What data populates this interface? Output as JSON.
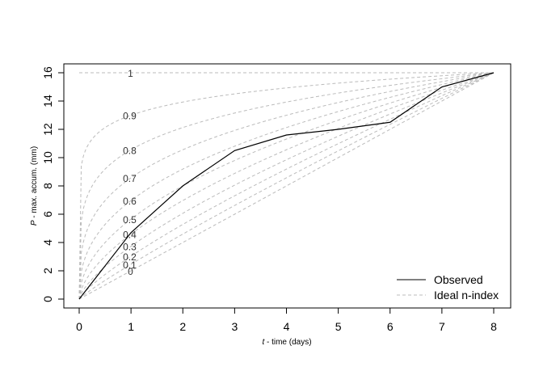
{
  "chart_data": {
    "type": "line",
    "title": "",
    "xlabel_italic": "t",
    "xlabel_rest": " - time (days)",
    "ylabel_italic": "P",
    "ylabel_rest": " - max. accum. (mm)",
    "xlim": [
      0,
      8
    ],
    "ylim": [
      0,
      16
    ],
    "xticks": [
      0,
      1,
      2,
      3,
      4,
      5,
      6,
      7,
      8
    ],
    "yticks": [
      0,
      2,
      4,
      6,
      8,
      10,
      12,
      14,
      16
    ],
    "grid": false,
    "legend_position": "bottom-right",
    "series": [
      {
        "name": "Observed",
        "style": "solid",
        "color": "#000000",
        "x": [
          0,
          1,
          2,
          3,
          4,
          5,
          6,
          7,
          8
        ],
        "y": [
          0,
          4.7,
          8.0,
          10.5,
          11.6,
          12.0,
          12.5,
          15.0,
          16.0
        ]
      },
      {
        "name": "Ideal n-index",
        "style": "dashed",
        "color": "#bbbbbb",
        "n_values": [
          0,
          0.1,
          0.2,
          0.3,
          0.4,
          0.5,
          0.6,
          0.7,
          0.8,
          0.9,
          1
        ],
        "n_labels": [
          "0",
          "0.1",
          "0.2",
          "0.3",
          "0.4",
          "0.5",
          "0.6",
          "0.7",
          "0.8",
          "0.9",
          "1"
        ],
        "curve_label_x": 1
      }
    ]
  }
}
